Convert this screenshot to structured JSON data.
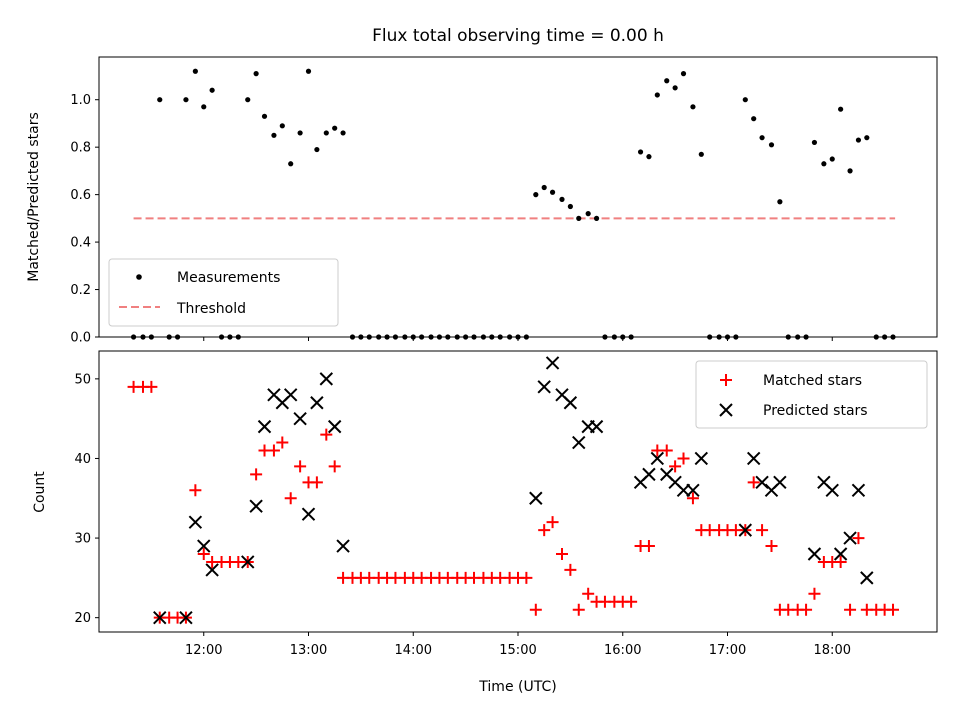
{
  "title": "Flux total observing time = 0.00 h",
  "chart_data": [
    {
      "type": "scatter",
      "ylabel": "Matched/Predicted stars",
      "xlim": [
        11.0,
        19.0
      ],
      "ylim": [
        0.0,
        1.18
      ],
      "yticks": [
        "0.0",
        "0.2",
        "0.4",
        "0.6",
        "0.8",
        "1.0"
      ],
      "legend": {
        "location": "lower-left",
        "entries": [
          "Measurements",
          "Threshold"
        ]
      },
      "colors": {
        "measurements": "#000000",
        "threshold": "#f08080"
      },
      "threshold": {
        "value": 0.5,
        "x_start": 11.33,
        "x_end": 18.6
      },
      "series": [
        {
          "x": [
            11.33,
            11.42,
            11.5,
            11.58,
            11.67,
            11.75,
            11.83,
            11.92,
            12.0,
            12.08,
            12.17,
            12.25,
            12.33,
            12.42,
            12.5,
            12.58,
            12.67,
            12.75,
            12.83,
            12.92,
            13.0,
            13.08,
            13.17,
            13.25,
            13.33,
            13.42,
            13.5,
            13.58,
            13.67,
            13.75,
            13.83,
            13.92,
            14.0,
            14.08,
            14.17,
            14.25,
            14.33,
            14.42,
            14.5,
            14.58,
            14.67,
            14.75,
            14.83,
            14.92,
            15.0,
            15.08,
            15.17,
            15.25,
            15.33,
            15.42,
            15.5,
            15.58,
            15.67,
            15.75,
            15.83,
            15.92,
            16.0,
            16.08,
            16.17,
            16.25,
            16.33,
            16.42,
            16.5,
            16.58,
            16.67,
            16.75,
            16.83,
            16.92,
            17.0,
            17.08,
            17.17,
            17.25,
            17.33,
            17.42,
            17.5,
            17.58,
            17.67,
            17.75,
            17.83,
            17.92,
            18.0,
            18.08,
            18.17,
            18.25,
            18.33,
            18.42,
            18.5,
            18.58
          ],
          "y": [
            0,
            0,
            0,
            1.0,
            0,
            0,
            1.0,
            1.12,
            0.97,
            1.04,
            0,
            0,
            0,
            1.0,
            1.11,
            0.93,
            0.85,
            0.89,
            0.73,
            0.86,
            1.12,
            0.79,
            0.86,
            0.88,
            0.86,
            0,
            0,
            0,
            0,
            0,
            0,
            0,
            0,
            0,
            0,
            0,
            0,
            0,
            0,
            0,
            0,
            0,
            0,
            0,
            0,
            0,
            0.6,
            0.63,
            0.61,
            0.58,
            0.55,
            0.5,
            0.52,
            0.5,
            0,
            0,
            0,
            0,
            0.78,
            0.76,
            1.02,
            1.08,
            1.05,
            1.11,
            0.97,
            0.77,
            0,
            0,
            0,
            0,
            1.0,
            0.92,
            0.84,
            0.81,
            0.57,
            0,
            0,
            0,
            0.82,
            0.73,
            0.75,
            0.96,
            0.7,
            0.83,
            0.84,
            0,
            0,
            0
          ]
        }
      ]
    },
    {
      "type": "scatter",
      "xlabel": "Time (UTC)",
      "ylabel": "Count",
      "xlim": [
        11.0,
        19.0
      ],
      "ylim": [
        18.2,
        53.5
      ],
      "yticks": [
        "20",
        "30",
        "40",
        "50"
      ],
      "xticks": [
        {
          "value": 12,
          "label": "12:00"
        },
        {
          "value": 13,
          "label": "13:00"
        },
        {
          "value": 14,
          "label": "14:00"
        },
        {
          "value": 15,
          "label": "15:00"
        },
        {
          "value": 16,
          "label": "16:00"
        },
        {
          "value": 17,
          "label": "17:00"
        },
        {
          "value": 18,
          "label": "18:00"
        }
      ],
      "legend": {
        "location": "upper-right",
        "entries": [
          "Matched stars",
          "Predicted stars"
        ]
      },
      "colors": {
        "matched": "#ff0000",
        "predicted": "#000000"
      },
      "series": [
        {
          "name": "Matched stars",
          "x": [
            11.33,
            11.42,
            11.5,
            11.58,
            11.67,
            11.75,
            11.83,
            11.92,
            12.0,
            12.08,
            12.17,
            12.25,
            12.33,
            12.42,
            12.5,
            12.58,
            12.67,
            12.75,
            12.83,
            12.92,
            13.0,
            13.08,
            13.17,
            13.25,
            13.33,
            13.42,
            13.5,
            13.58,
            13.67,
            13.75,
            13.83,
            13.92,
            14.0,
            14.08,
            14.17,
            14.25,
            14.33,
            14.42,
            14.5,
            14.58,
            14.67,
            14.75,
            14.83,
            14.92,
            15.0,
            15.08,
            15.17,
            15.25,
            15.33,
            15.42,
            15.5,
            15.58,
            15.67,
            15.75,
            15.83,
            15.92,
            16.0,
            16.08,
            16.17,
            16.25,
            16.33,
            16.42,
            16.5,
            16.58,
            16.67,
            16.75,
            16.83,
            16.92,
            17.0,
            17.08,
            17.17,
            17.25,
            17.33,
            17.42,
            17.5,
            17.58,
            17.67,
            17.75,
            17.83,
            17.92,
            18.0,
            18.08,
            18.17,
            18.25,
            18.33,
            18.42,
            18.5,
            18.58
          ],
          "y": [
            49,
            49,
            49,
            20,
            20,
            20,
            20,
            36,
            28,
            27,
            27,
            27,
            27,
            27,
            38,
            41,
            41,
            42,
            35,
            39,
            37,
            37,
            43,
            39,
            25,
            25,
            25,
            25,
            25,
            25,
            25,
            25,
            25,
            25,
            25,
            25,
            25,
            25,
            25,
            25,
            25,
            25,
            25,
            25,
            25,
            25,
            21,
            31,
            32,
            28,
            26,
            21,
            23,
            22,
            22,
            22,
            22,
            22,
            29,
            29,
            41,
            41,
            39,
            40,
            35,
            31,
            31,
            31,
            31,
            31,
            31,
            37,
            31,
            29,
            21,
            21,
            21,
            21,
            23,
            27,
            27,
            27,
            21,
            30,
            21,
            21,
            21,
            21
          ]
        },
        {
          "name": "Predicted stars",
          "x": [
            11.58,
            11.83,
            11.92,
            12.0,
            12.08,
            12.42,
            12.5,
            12.58,
            12.67,
            12.75,
            12.83,
            12.92,
            13.0,
            13.08,
            13.17,
            13.25,
            13.33,
            15.17,
            15.25,
            15.33,
            15.42,
            15.5,
            15.58,
            15.67,
            15.75,
            16.17,
            16.25,
            16.33,
            16.42,
            16.5,
            16.58,
            16.67,
            16.75,
            17.17,
            17.25,
            17.33,
            17.42,
            17.5,
            17.83,
            17.92,
            18.0,
            18.08,
            18.17,
            18.25,
            18.33
          ],
          "y": [
            20,
            20,
            32,
            29,
            26,
            27,
            34,
            44,
            48,
            47,
            48,
            45,
            33,
            47,
            50,
            44,
            29,
            35,
            49,
            52,
            48,
            47,
            42,
            44,
            44,
            37,
            38,
            40,
            38,
            37,
            36,
            36,
            40,
            31,
            40,
            37,
            36,
            37,
            28,
            37,
            36,
            28,
            30,
            36,
            25
          ]
        }
      ]
    }
  ]
}
